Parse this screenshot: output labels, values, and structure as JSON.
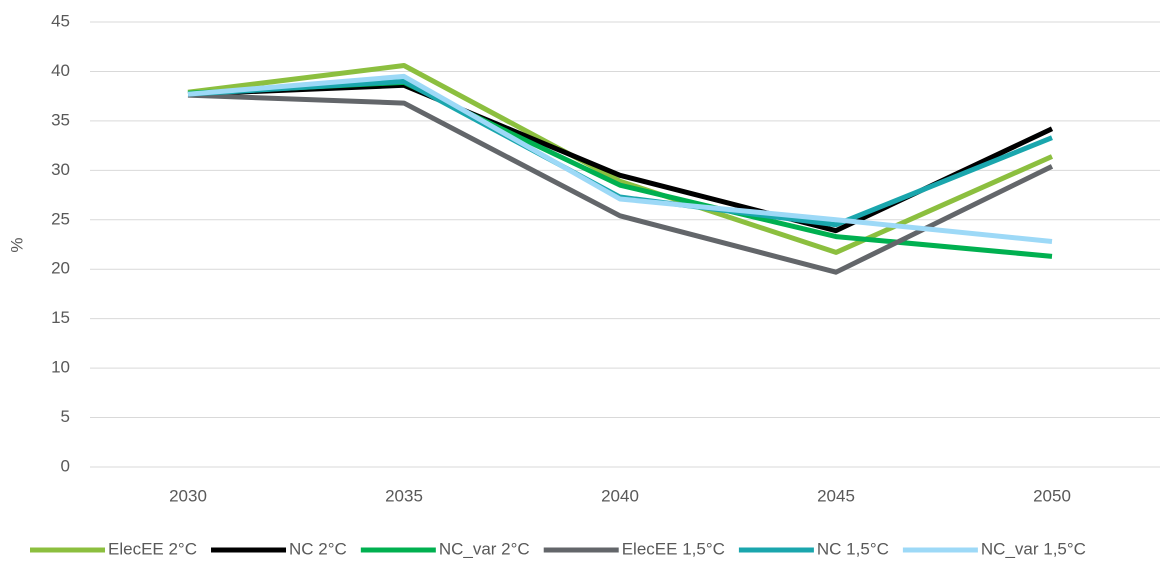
{
  "chart_data": {
    "type": "line",
    "y_label": "%",
    "categories": [
      "2030",
      "2035",
      "2040",
      "2045",
      "2050"
    ],
    "series": [
      {
        "name": "ElecEE 2°C",
        "color": "#8cbf3f",
        "values": [
          37.9,
          40.6,
          28.9,
          21.7,
          31.4
        ]
      },
      {
        "name": "NC 2°C",
        "color": "#000000",
        "values": [
          37.7,
          38.6,
          29.5,
          23.9,
          34.2
        ]
      },
      {
        "name": "NC_var 2°C",
        "color": "#00b050",
        "values": [
          37.8,
          38.9,
          28.5,
          23.3,
          21.3
        ]
      },
      {
        "name": "ElecEE 1,5°C",
        "color": "#63666a",
        "values": [
          37.6,
          36.8,
          25.4,
          19.7,
          30.4
        ]
      },
      {
        "name": "NC 1,5°C",
        "color": "#1aa6ad",
        "values": [
          37.7,
          39.0,
          27.3,
          24.5,
          33.3
        ]
      },
      {
        "name": "NC_var 1,5°C",
        "color": "#9dd9f7",
        "values": [
          37.7,
          39.5,
          27.1,
          25.0,
          22.8
        ]
      }
    ],
    "ylim": [
      0,
      45
    ],
    "yticks": [
      0,
      5,
      10,
      15,
      20,
      25,
      30,
      35,
      40,
      45
    ],
    "grid": true
  }
}
